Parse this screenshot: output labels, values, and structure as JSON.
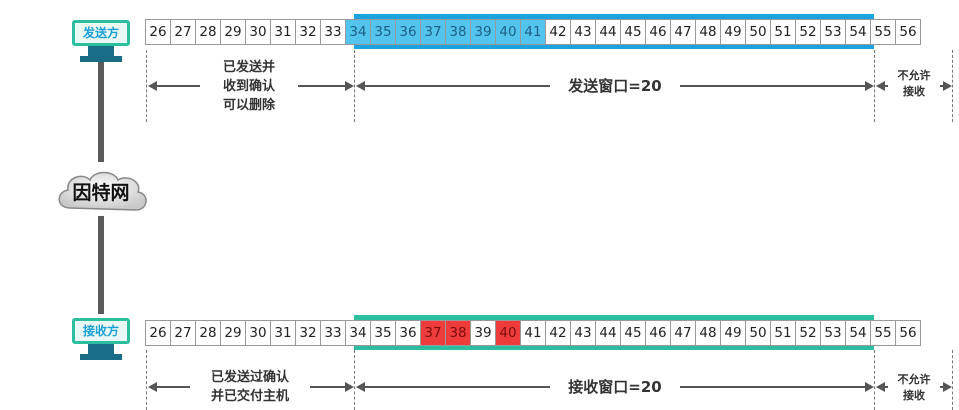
{
  "sender": {
    "host_label": "发送方",
    "numbers": [
      "26",
      "27",
      "28",
      "29",
      "30",
      "31",
      "32",
      "33",
      "34",
      "35",
      "36",
      "37",
      "38",
      "39",
      "40",
      "41",
      "42",
      "43",
      "44",
      "45",
      "46",
      "47",
      "48",
      "49",
      "50",
      "51",
      "52",
      "53",
      "54",
      "55",
      "56"
    ],
    "sent_acked_label": [
      "已发送并",
      "收到确认",
      "可以删除"
    ],
    "window_label": "发送窗口=20",
    "not_allowed_label": [
      "不允许",
      "接收"
    ],
    "colors": {
      "window_bar": "#1ba3de",
      "highlight": "#52c4ee"
    }
  },
  "network": {
    "label": "因特网"
  },
  "receiver": {
    "host_label": "接收方",
    "numbers": [
      "26",
      "27",
      "28",
      "29",
      "30",
      "31",
      "32",
      "33",
      "34",
      "35",
      "36",
      "37",
      "38",
      "39",
      "40",
      "41",
      "42",
      "43",
      "44",
      "45",
      "46",
      "47",
      "48",
      "49",
      "50",
      "51",
      "52",
      "53",
      "54",
      "55",
      "56"
    ],
    "delivered_label": [
      "已发送过确认",
      "并已交付主机"
    ],
    "window_label": "接收窗口=20",
    "not_allowed_label": [
      "不允许",
      "接收"
    ],
    "colors": {
      "window_bar": "#2bbfa0",
      "highlight": "#ee3b3b"
    }
  }
}
